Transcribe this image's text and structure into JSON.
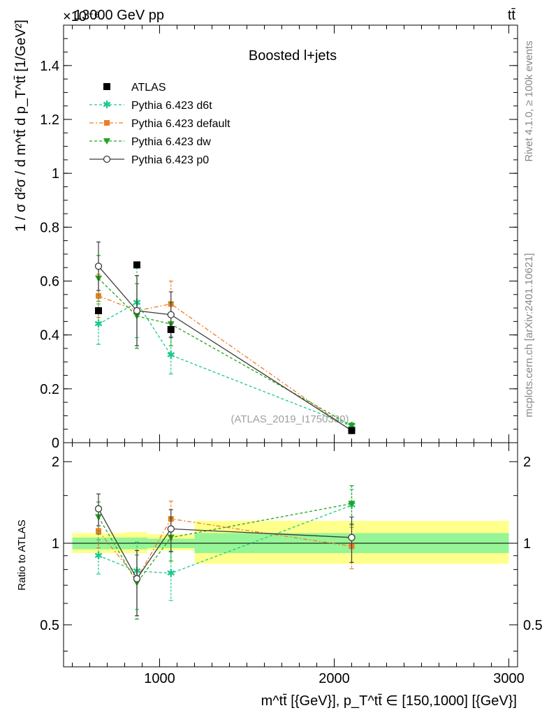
{
  "header": {
    "left": "13000 GeV pp",
    "right": "tt̄",
    "exponent": "×10⁻⁶"
  },
  "side_labels": {
    "rivet": "Rivet 4.1.0, ≥ 100k events",
    "mcplots": "mcplots.cern.ch [arXiv:2401.10621]"
  },
  "colors": {
    "atlas": "#000000",
    "d6t": "#1ac98a",
    "default": "#f07c26",
    "dw": "#22a41e",
    "p0": "#3c3c3c",
    "band_outer": "#ffff8c",
    "band_inner": "#96f596"
  },
  "chart_data": [
    {
      "type": "scatter",
      "title": "Boosted l+jets",
      "analysis_tag": "(ATLAS_2019_I1750330)",
      "ylabel": "1 / σ d²σ / d m^tt̄ d p_T^tt̄ [1/GeV²]",
      "xlim": [
        450,
        3050
      ],
      "ylim": [
        0,
        1.55
      ],
      "yticks": [
        0,
        0.2,
        0.4,
        0.6,
        0.8,
        1,
        1.2,
        1.4
      ],
      "ytick_labels": [
        "0",
        "0.2",
        "0.4",
        "0.6",
        "0.8",
        "1",
        "1.2",
        "1.4"
      ],
      "legend": {
        "placement": "top-left",
        "entries": [
          "ATLAS",
          "Pythia 6.423 d6t",
          "Pythia 6.423 default",
          "Pythia 6.423 dw",
          "Pythia 6.423 p0"
        ]
      },
      "series": [
        {
          "name": "ATLAS",
          "key": "atlas",
          "marker": "square",
          "line": "none",
          "x": [
            650,
            870,
            1065,
            2100
          ],
          "y": [
            0.49,
            0.66,
            0.42,
            0.045
          ],
          "err": [
            0,
            0,
            0,
            0
          ]
        },
        {
          "name": "Pythia 6.423 d6t",
          "key": "d6t",
          "marker": "star",
          "line": "dashed",
          "x": [
            650,
            870,
            1065,
            2100
          ],
          "y": [
            0.44,
            0.52,
            0.325,
            0.062
          ],
          "err": [
            0.075,
            0.13,
            0.07,
            0.01
          ]
        },
        {
          "name": "Pythia 6.423 default",
          "key": "default",
          "marker": "square",
          "line": "dashdot",
          "x": [
            650,
            870,
            1065,
            2100
          ],
          "y": [
            0.545,
            0.49,
            0.515,
            0.043
          ],
          "err": [
            0.08,
            0.13,
            0.085,
            0.008
          ]
        },
        {
          "name": "Pythia 6.423 dw",
          "key": "dw",
          "marker": "triangle-down",
          "line": "dashed",
          "x": [
            650,
            870,
            1065,
            2100
          ],
          "y": [
            0.61,
            0.47,
            0.44,
            0.063
          ],
          "err": [
            0.085,
            0.12,
            0.08,
            0.01
          ]
        },
        {
          "name": "Pythia 6.423 p0",
          "key": "p0",
          "marker": "open-circle",
          "line": "solid",
          "x": [
            650,
            870,
            1065,
            2100
          ],
          "y": [
            0.655,
            0.49,
            0.475,
            0.045
          ],
          "err": [
            0.09,
            0.13,
            0.085,
            0.008
          ]
        }
      ]
    },
    {
      "type": "scatter",
      "title": "",
      "xlabel": "m^tt̄ [{GeV}], p_T^tt̄ ∈ [150,1000] [{GeV}]",
      "ylabel": "Ratio to ATLAS",
      "xlim": [
        450,
        3050
      ],
      "ylim": [
        0.35,
        2.35
      ],
      "yscale": "log",
      "yticks": [
        0.5,
        1,
        2
      ],
      "ytick_labels": [
        "0.5",
        "1",
        "2"
      ],
      "xticks": [
        1000,
        2000,
        3000
      ],
      "xtick_labels": [
        "1000",
        "2000",
        "3000"
      ],
      "bands": [
        {
          "x0": 500,
          "x1": 800,
          "outer": [
            0.92,
            1.09
          ],
          "inner": [
            0.95,
            1.05
          ]
        },
        {
          "x0": 800,
          "x1": 930,
          "outer": [
            0.92,
            1.1
          ],
          "inner": [
            0.95,
            1.05
          ]
        },
        {
          "x0": 930,
          "x1": 1200,
          "outer": [
            0.94,
            1.08
          ],
          "inner": [
            0.96,
            1.04
          ]
        },
        {
          "x0": 1200,
          "x1": 3000,
          "outer": [
            0.84,
            1.21
          ],
          "inner": [
            0.92,
            1.09
          ]
        }
      ],
      "series": [
        {
          "name": "Pythia 6.423 d6t",
          "key": "d6t",
          "marker": "star",
          "line": "dashed",
          "x": [
            650,
            870,
            1065,
            2100
          ],
          "y": [
            0.9,
            0.79,
            0.775,
            1.38
          ],
          "err": [
            0.13,
            0.22,
            0.16,
            0.2
          ]
        },
        {
          "name": "Pythia 6.423 default",
          "key": "default",
          "marker": "square",
          "line": "dashdot",
          "x": [
            650,
            870,
            1065,
            2100
          ],
          "y": [
            1.11,
            0.74,
            1.23,
            0.975
          ],
          "err": [
            0.15,
            0.2,
            0.2,
            0.17
          ]
        },
        {
          "name": "Pythia 6.423 dw",
          "key": "dw",
          "marker": "triangle-down",
          "line": "dashed",
          "x": [
            650,
            870,
            1065,
            2100
          ],
          "y": [
            1.25,
            0.715,
            1.05,
            1.4
          ],
          "err": [
            0.17,
            0.19,
            0.19,
            0.23
          ]
        },
        {
          "name": "Pythia 6.423 p0",
          "key": "p0",
          "marker": "open-circle",
          "line": "solid",
          "x": [
            650,
            870,
            1065,
            2100
          ],
          "y": [
            1.34,
            0.74,
            1.13,
            1.05
          ],
          "err": [
            0.18,
            0.2,
            0.2,
            0.2
          ]
        }
      ]
    }
  ]
}
